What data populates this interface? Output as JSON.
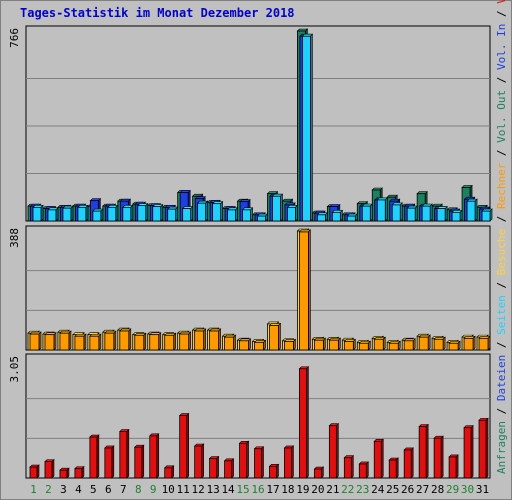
{
  "title": "Tages-Statistik im Monat Dezember 2018",
  "colors": {
    "anfragen": "#1f8060",
    "dateien": "#1f3fdf",
    "seiten": "#20d0ff",
    "besuche": "#ffd040",
    "rechner": "#ff9a00",
    "volumen": "#e01010",
    "weekday": "#000000",
    "weekend": "#208030",
    "separator": "#000000"
  },
  "legend_top": [
    {
      "text": "Anfragen",
      "color_key": "anfragen"
    },
    {
      "text": " / ",
      "color_key": "separator"
    },
    {
      "text": "Dateien",
      "color_key": "dateien"
    },
    {
      "text": " / ",
      "color_key": "separator"
    },
    {
      "text": "Seiten",
      "color_key": "seiten"
    },
    {
      "text": " / ",
      "color_key": "separator"
    },
    {
      "text": "Besuche",
      "color_key": "besuche"
    },
    {
      "text": " / ",
      "color_key": "separator"
    },
    {
      "text": "Rechner",
      "color_key": "rechner"
    },
    {
      "text": " / ",
      "color_key": "separator"
    },
    {
      "text": "Vol. Out",
      "color_key": "anfragen"
    },
    {
      "text": " / ",
      "color_key": "separator"
    },
    {
      "text": "Vol. In",
      "color_key": "dateien"
    },
    {
      "text": " / ",
      "color_key": "separator"
    },
    {
      "text": "Volumen",
      "color_key": "volumen"
    }
  ],
  "chart_data": [
    {
      "type": "bar",
      "ymax_label": "766",
      "ymax": 766,
      "x": [
        1,
        2,
        3,
        4,
        5,
        6,
        7,
        8,
        9,
        10,
        11,
        12,
        13,
        14,
        15,
        16,
        17,
        18,
        19,
        20,
        21,
        22,
        23,
        24,
        25,
        26,
        27,
        28,
        29,
        30,
        31
      ],
      "weekend_days": [
        1,
        2,
        8,
        9,
        15,
        16,
        22,
        23,
        29,
        30
      ],
      "series": [
        {
          "name": "Anfragen",
          "values": [
            60,
            50,
            55,
            60,
            58,
            60,
            80,
            68,
            62,
            55,
            115,
            100,
            75,
            50,
            80,
            25,
            110,
            80,
            766,
            32,
            58,
            25,
            70,
            125,
            96,
            60,
            110,
            60,
            45,
            135,
            55
          ]
        },
        {
          "name": "Dateien",
          "values": [
            60,
            50,
            55,
            60,
            82,
            60,
            80,
            68,
            62,
            55,
            115,
            90,
            75,
            50,
            78,
            25,
            100,
            65,
            745,
            32,
            58,
            25,
            60,
            85,
            80,
            60,
            60,
            50,
            40,
            88,
            48
          ]
        },
        {
          "name": "Seiten",
          "values": [
            55,
            45,
            52,
            55,
            40,
            55,
            55,
            62,
            58,
            48,
            50,
            72,
            70,
            45,
            45,
            20,
            100,
            55,
            745,
            25,
            35,
            20,
            60,
            85,
            65,
            52,
            60,
            50,
            35,
            80,
            40
          ]
        }
      ]
    },
    {
      "type": "bar",
      "ymax_label": "388",
      "ymax": 388,
      "x": [
        1,
        2,
        3,
        4,
        5,
        6,
        7,
        8,
        9,
        10,
        11,
        12,
        13,
        14,
        15,
        16,
        17,
        18,
        19,
        20,
        21,
        22,
        23,
        24,
        25,
        26,
        27,
        28,
        29,
        30,
        31
      ],
      "series": [
        {
          "name": "Besuche",
          "values": [
            55,
            52,
            58,
            50,
            50,
            58,
            65,
            50,
            52,
            50,
            55,
            65,
            65,
            45,
            32,
            28,
            85,
            30,
            388,
            35,
            35,
            32,
            25,
            38,
            25,
            32,
            45,
            38,
            25,
            42,
            42
          ]
        },
        {
          "name": "Rechner",
          "values": [
            52,
            50,
            55,
            45,
            45,
            55,
            62,
            48,
            50,
            48,
            52,
            62,
            62,
            42,
            30,
            25,
            80,
            28,
            385,
            32,
            32,
            28,
            22,
            35,
            22,
            30,
            42,
            35,
            22,
            38,
            38
          ]
        }
      ]
    },
    {
      "type": "bar",
      "ymax_label": "3.05",
      "ymax": 3.05,
      "x": [
        1,
        2,
        3,
        4,
        5,
        6,
        7,
        8,
        9,
        10,
        11,
        12,
        13,
        14,
        15,
        16,
        17,
        18,
        19,
        20,
        21,
        22,
        23,
        24,
        25,
        26,
        27,
        28,
        29,
        30,
        31
      ],
      "series": [
        {
          "name": "Volumen",
          "values": [
            0.28,
            0.42,
            0.2,
            0.24,
            1.05,
            0.77,
            1.19,
            0.79,
            1.08,
            0.26,
            1.6,
            0.82,
            0.5,
            0.44,
            0.89,
            0.75,
            0.3,
            0.77,
            2.8,
            0.23,
            1.34,
            0.52,
            0.36,
            0.94,
            0.46,
            0.72,
            1.32,
            1.02,
            0.54,
            1.29,
            1.48
          ]
        }
      ]
    }
  ]
}
